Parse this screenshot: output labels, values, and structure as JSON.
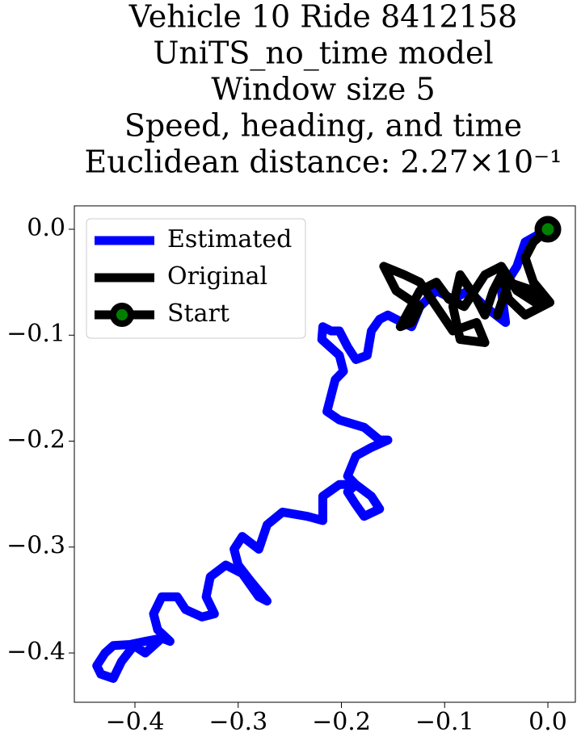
{
  "chart_data": {
    "type": "line",
    "title": [
      "Vehicle 10 Ride 8412158",
      "UniTS_no_time model",
      "Window size 5",
      "Speed, heading, and time",
      "Euclidean distance: 2.27×10⁻¹"
    ],
    "xlim": [
      -0.4587,
      0.0266
    ],
    "ylim": [
      -0.4465,
      0.0221
    ],
    "xticks": [
      {
        "value": -0.4,
        "label": "−0.4"
      },
      {
        "value": -0.3,
        "label": "−0.3"
      },
      {
        "value": -0.2,
        "label": "−0.2"
      },
      {
        "value": -0.1,
        "label": "−0.1"
      },
      {
        "value": 0,
        "label": "0.0"
      }
    ],
    "yticks": [
      {
        "value": 0,
        "label": "0.0"
      },
      {
        "value": -0.1,
        "label": "−0.1"
      },
      {
        "value": -0.2,
        "label": "−0.2"
      },
      {
        "value": -0.3,
        "label": "−0.3"
      },
      {
        "value": -0.4,
        "label": "−0.4"
      }
    ],
    "legend": "upper left",
    "series": [
      {
        "name": "Estimated",
        "color": "#0000ff",
        "x": [
          0,
          -0.022,
          -0.03,
          -0.045,
          -0.041,
          -0.061,
          -0.077,
          -0.092,
          -0.108,
          -0.124,
          -0.132,
          -0.147,
          -0.155,
          -0.163,
          -0.171,
          -0.175,
          -0.186,
          -0.194,
          -0.202,
          -0.21,
          -0.218,
          -0.219,
          -0.202,
          -0.198,
          -0.206,
          -0.21,
          -0.214,
          -0.202,
          -0.178,
          -0.163,
          -0.155,
          -0.171,
          -0.186,
          -0.194,
          -0.186,
          -0.194,
          -0.186,
          -0.178,
          -0.163,
          -0.171,
          -0.186,
          -0.202,
          -0.218,
          -0.218,
          -0.233,
          -0.257,
          -0.272,
          -0.28,
          -0.296,
          -0.304,
          -0.3,
          -0.288,
          -0.272,
          -0.28,
          -0.296,
          -0.312,
          -0.327,
          -0.331,
          -0.323,
          -0.335,
          -0.351,
          -0.359,
          -0.374,
          -0.382,
          -0.378,
          -0.366,
          -0.374,
          -0.39,
          -0.405,
          -0.421,
          -0.429,
          -0.437,
          -0.433,
          -0.421,
          -0.413,
          -0.401,
          -0.39,
          -0.374
        ],
        "y": [
          0,
          -0.012,
          -0.035,
          -0.058,
          -0.088,
          -0.073,
          -0.058,
          -0.066,
          -0.058,
          -0.073,
          -0.092,
          -0.085,
          -0.081,
          -0.085,
          -0.096,
          -0.119,
          -0.123,
          -0.111,
          -0.096,
          -0.096,
          -0.092,
          -0.104,
          -0.119,
          -0.134,
          -0.142,
          -0.157,
          -0.172,
          -0.18,
          -0.187,
          -0.199,
          -0.199,
          -0.206,
          -0.214,
          -0.233,
          -0.241,
          -0.248,
          -0.26,
          -0.271,
          -0.264,
          -0.252,
          -0.241,
          -0.241,
          -0.252,
          -0.275,
          -0.271,
          -0.267,
          -0.279,
          -0.302,
          -0.29,
          -0.302,
          -0.317,
          -0.332,
          -0.351,
          -0.347,
          -0.325,
          -0.317,
          -0.328,
          -0.347,
          -0.363,
          -0.366,
          -0.359,
          -0.347,
          -0.347,
          -0.363,
          -0.378,
          -0.389,
          -0.386,
          -0.389,
          -0.392,
          -0.393,
          -0.4,
          -0.412,
          -0.42,
          -0.424,
          -0.408,
          -0.393,
          -0.4,
          -0.386
        ]
      },
      {
        "name": "Original",
        "color": "#000000",
        "x": [
          0,
          -0.014,
          -0.022,
          -0.014,
          0.002,
          -0.022,
          -0.038,
          -0.045,
          -0.053,
          -0.061,
          -0.069,
          -0.085,
          -0.092,
          -0.085,
          -0.061,
          -0.069,
          -0.092,
          -0.108,
          -0.124,
          -0.139,
          -0.159,
          -0.147,
          -0.124,
          -0.132,
          -0.143,
          -0.124,
          -0.108,
          -0.096,
          -0.081,
          -0.061,
          -0.045,
          -0.03,
          -0.006,
          -0.014,
          -0.038,
          -0.049
        ],
        "y": [
          0,
          -0.012,
          -0.027,
          -0.05,
          -0.069,
          -0.081,
          -0.066,
          -0.043,
          -0.058,
          -0.081,
          -0.066,
          -0.043,
          -0.073,
          -0.104,
          -0.107,
          -0.088,
          -0.096,
          -0.073,
          -0.05,
          -0.043,
          -0.035,
          -0.058,
          -0.073,
          -0.088,
          -0.092,
          -0.058,
          -0.05,
          -0.066,
          -0.073,
          -0.043,
          -0.035,
          -0.058,
          -0.073,
          -0.058,
          -0.05,
          -0.081
        ]
      },
      {
        "name": "Start",
        "color": "#000000",
        "marker_face": "#008000",
        "x": [
          0
        ],
        "y": [
          0
        ]
      }
    ]
  }
}
